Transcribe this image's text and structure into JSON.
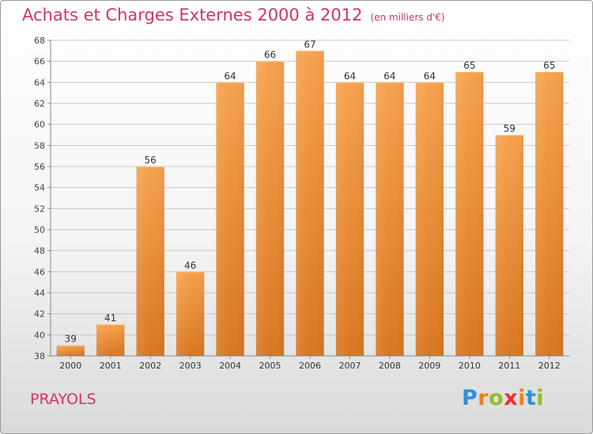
{
  "header": {
    "title": "Achats et Charges Externes 2000 à 2012",
    "subtitle": "(en milliers d'€)"
  },
  "footer": {
    "commune": "PRAYOLS",
    "logo_letters": [
      "P",
      "r",
      "o",
      "x",
      "i",
      "t",
      "i"
    ],
    "logo_colors": [
      "#2f8fd8",
      "#ef7f1a",
      "#8fbf22",
      "#e8322c",
      "#ef7f1a",
      "#2f8fd8",
      "#8fbf22"
    ]
  },
  "colors": {
    "bar_top": "#f6a24e",
    "bar_bottom": "#d97722",
    "title": "#d1355f",
    "grid": "#c8c8c8"
  },
  "chart_data": {
    "type": "bar",
    "title": "Achats et Charges Externes 2000 à 2012",
    "subtitle": "(en milliers d'€)",
    "categories": [
      "2000",
      "2001",
      "2002",
      "2003",
      "2004",
      "2005",
      "2006",
      "2007",
      "2008",
      "2009",
      "2010",
      "2011",
      "2012"
    ],
    "values": [
      39,
      41,
      56,
      46,
      64,
      66,
      67,
      64,
      64,
      64,
      65,
      59,
      65
    ],
    "ylim": [
      38,
      68
    ],
    "yticks": [
      38,
      40,
      42,
      44,
      46,
      48,
      50,
      52,
      54,
      56,
      58,
      60,
      62,
      64,
      66,
      68
    ],
    "grid": true,
    "data_labels": true
  }
}
